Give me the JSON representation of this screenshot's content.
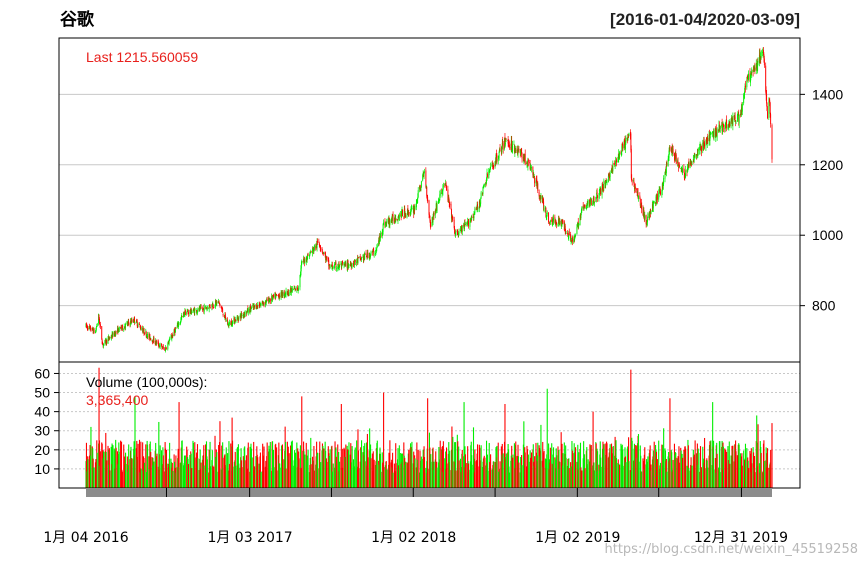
{
  "title": "谷歌",
  "date_range": "[2016-01-04/2020-03-09]",
  "watermark": "https://blog.csdn.net/weixin_45519258",
  "colors": {
    "up": "#00ee00",
    "down": "#ff0000",
    "last_text": "#e8201c",
    "grid": "#c8c8c8",
    "axis_bar": "#8c8c8c"
  },
  "chart_data": [
    {
      "type": "candlestick",
      "panel": "price",
      "label": "Last 1215.560059",
      "ylim": [
        640,
        1560
      ],
      "y_ticks": [
        800,
        1000,
        1200,
        1400
      ],
      "y_axis_side": "right",
      "grid": true,
      "x_ticks": [
        "1月 04 2016",
        "1月 03 2017",
        "1月 02 2018",
        "1月 02 2019",
        "12月 31 2019"
      ],
      "x_range": [
        "2016-01-04",
        "2020-03-09"
      ],
      "anchors": [
        [
          "2016-01-04",
          742
        ],
        [
          "2016-01-25",
          725
        ],
        [
          "2016-02-01",
          770
        ],
        [
          "2016-02-10",
          690
        ],
        [
          "2016-03-15",
          730
        ],
        [
          "2016-04-20",
          760
        ],
        [
          "2016-05-20",
          715
        ],
        [
          "2016-06-27",
          675
        ],
        [
          "2016-08-10",
          780
        ],
        [
          "2016-09-20",
          790
        ],
        [
          "2016-10-25",
          810
        ],
        [
          "2016-11-15",
          745
        ],
        [
          "2017-01-03",
          790
        ],
        [
          "2017-03-01",
          825
        ],
        [
          "2017-04-20",
          850
        ],
        [
          "2017-04-28",
          920
        ],
        [
          "2017-06-05",
          980
        ],
        [
          "2017-06-29",
          910
        ],
        [
          "2017-08-10",
          915
        ],
        [
          "2017-10-10",
          955
        ],
        [
          "2017-10-27",
          1030
        ],
        [
          "2017-12-05",
          1060
        ],
        [
          "2018-01-02",
          1070
        ],
        [
          "2018-01-26",
          1180
        ],
        [
          "2018-02-08",
          1030
        ],
        [
          "2018-03-12",
          1150
        ],
        [
          "2018-04-05",
          1000
        ],
        [
          "2018-05-01",
          1030
        ],
        [
          "2018-05-25",
          1080
        ],
        [
          "2018-06-15",
          1170
        ],
        [
          "2018-07-26",
          1270
        ],
        [
          "2018-08-30",
          1230
        ],
        [
          "2018-09-20",
          1190
        ],
        [
          "2018-10-29",
          1040
        ],
        [
          "2018-11-25",
          1040
        ],
        [
          "2018-12-24",
          980
        ],
        [
          "2019-01-10",
          1070
        ],
        [
          "2019-02-20",
          1120
        ],
        [
          "2019-03-25",
          1200
        ],
        [
          "2019-04-29",
          1290
        ],
        [
          "2019-05-01",
          1170
        ],
        [
          "2019-06-03",
          1040
        ],
        [
          "2019-07-10",
          1140
        ],
        [
          "2019-07-26",
          1250
        ],
        [
          "2019-08-26",
          1170
        ],
        [
          "2019-09-20",
          1230
        ],
        [
          "2019-10-25",
          1280
        ],
        [
          "2019-11-20",
          1310
        ],
        [
          "2019-12-31",
          1340
        ],
        [
          "2020-01-10",
          1430
        ],
        [
          "2020-02-05",
          1480
        ],
        [
          "2020-02-19",
          1525
        ],
        [
          "2020-02-28",
          1340
        ],
        [
          "2020-03-04",
          1385
        ],
        [
          "2020-03-09",
          1215.56
        ]
      ]
    },
    {
      "type": "bar",
      "panel": "volume",
      "label": "Volume (100,000s):",
      "last_value": "3,365,400",
      "unit": "100,000s",
      "ylim": [
        0,
        66
      ],
      "y_ticks": [
        10,
        20,
        30,
        40,
        50,
        60
      ],
      "y_axis_side": "left",
      "grid": true,
      "typical_range": [
        8,
        25
      ],
      "spikes": [
        [
          "2016-01-15",
          32
        ],
        [
          "2016-02-02",
          63
        ],
        [
          "2016-02-20",
          42
        ],
        [
          "2016-04-22",
          48
        ],
        [
          "2016-07-29",
          45
        ],
        [
          "2016-10-28",
          35
        ],
        [
          "2017-04-28",
          48
        ],
        [
          "2017-07-25",
          44
        ],
        [
          "2017-10-27",
          50
        ],
        [
          "2018-02-02",
          47
        ],
        [
          "2018-04-24",
          45
        ],
        [
          "2018-07-24",
          44
        ],
        [
          "2018-10-26",
          52
        ],
        [
          "2019-02-05",
          40
        ],
        [
          "2019-04-30",
          62
        ],
        [
          "2019-07-26",
          47
        ],
        [
          "2019-10-29",
          45
        ],
        [
          "2020-02-04",
          38
        ],
        [
          "2020-03-09",
          34
        ]
      ]
    }
  ]
}
